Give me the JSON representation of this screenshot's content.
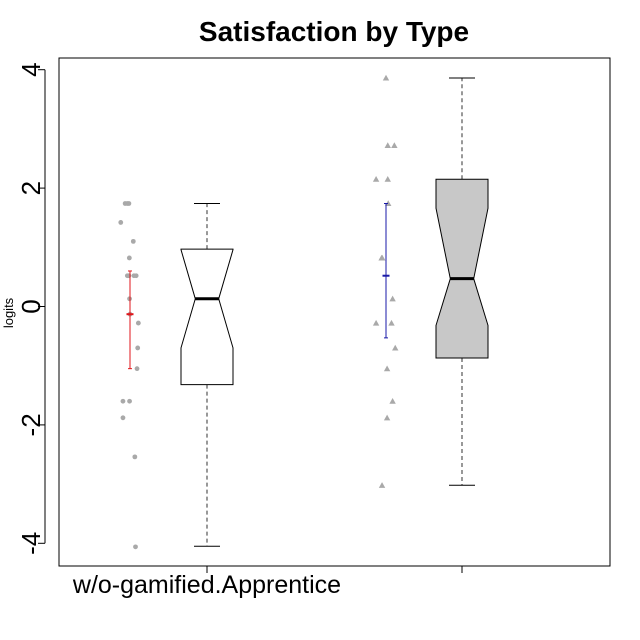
{
  "chart_data": {
    "type": "boxplot",
    "title": "Satisfaction by Type",
    "ylabel": "logits",
    "xlabel": "",
    "ylim": [
      -4.3,
      4.2
    ],
    "yticks": [
      -4,
      -2,
      0,
      2,
      4
    ],
    "grid": false,
    "categories": [
      "w/o-gamified.Apprentice",
      ""
    ],
    "groups": [
      {
        "name": "w/o-gamified.Apprentice",
        "box": {
          "whisker_low": -4.05,
          "q1": -1.32,
          "median": 0.13,
          "q3": 0.97,
          "whisker_high": 1.74,
          "notch_low": -0.7,
          "notch_high": 0.96
        },
        "box_fill": "#ffffff",
        "points": [
          [
            -0.22,
            1.74
          ],
          [
            -0.12,
            1.74
          ],
          [
            -0.05,
            1.74
          ],
          [
            -0.42,
            1.42
          ],
          [
            0.15,
            1.1
          ],
          [
            -0.03,
            0.82
          ],
          [
            -0.05,
            0.52
          ],
          [
            -0.12,
            0.52
          ],
          [
            0.18,
            0.52
          ],
          [
            0.28,
            0.52
          ],
          [
            -0.02,
            0.13
          ],
          [
            0.0,
            -0.13
          ],
          [
            0.38,
            -0.28
          ],
          [
            0.35,
            -0.7
          ],
          [
            0.32,
            -1.05
          ],
          [
            -0.32,
            -1.6
          ],
          [
            -0.02,
            -1.6
          ],
          [
            -0.32,
            -1.88
          ],
          [
            0.22,
            -2.54
          ],
          [
            0.25,
            -4.06
          ]
        ],
        "marker": "circle",
        "mean": -0.13,
        "ci": [
          -1.05,
          0.6
        ],
        "ci_color": "#e0161b"
      },
      {
        "name": "",
        "box": {
          "whisker_low": -3.02,
          "q1": -0.87,
          "median": 0.47,
          "q3": 2.15,
          "whisker_high": 3.86,
          "notch_low": -0.32,
          "notch_high": 1.66
        },
        "box_fill": "#c8c8c8",
        "points": [
          [
            0.0,
            3.86
          ],
          [
            0.08,
            2.72
          ],
          [
            0.38,
            2.72
          ],
          [
            -0.45,
            2.15
          ],
          [
            0.08,
            2.15
          ],
          [
            0.1,
            1.74
          ],
          [
            -0.2,
            0.82
          ],
          [
            -0.17,
            0.82
          ],
          [
            0.3,
            0.13
          ],
          [
            -0.45,
            -0.28
          ],
          [
            0.25,
            -0.28
          ],
          [
            0.42,
            -0.7
          ],
          [
            0.05,
            -1.05
          ],
          [
            0.3,
            -1.6
          ],
          [
            0.05,
            -1.88
          ],
          [
            -0.18,
            -3.02
          ]
        ],
        "marker": "triangle",
        "mean": 0.52,
        "ci": [
          -0.53,
          1.74
        ],
        "ci_color": "#1a1aa8"
      }
    ],
    "colors": {
      "axis": "#000000",
      "whisker": "#555555",
      "points": "#a9a9a9"
    }
  }
}
